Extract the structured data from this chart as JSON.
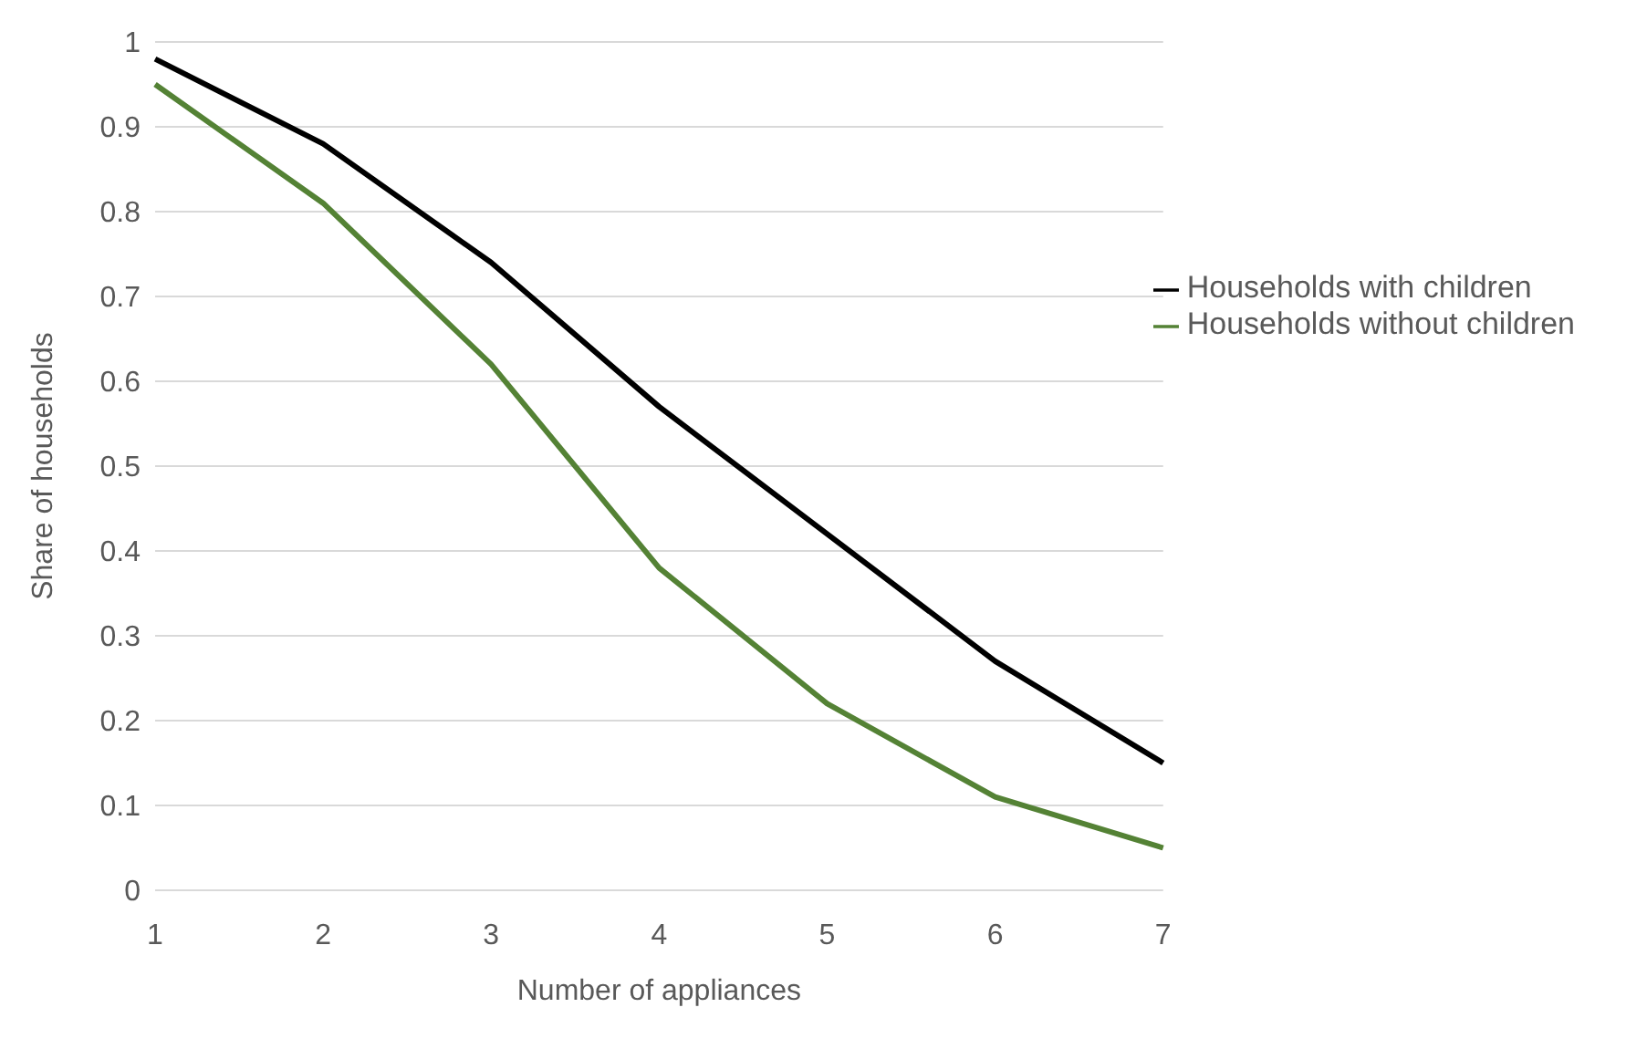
{
  "chart_data": {
    "type": "line",
    "xlabel": "Number  of appliances",
    "ylabel": "Share of households",
    "categories": [
      "1",
      "2",
      "3",
      "4",
      "5",
      "6",
      "7"
    ],
    "series": [
      {
        "name": "Households with children",
        "color": "#000000",
        "values": [
          0.98,
          0.88,
          0.74,
          0.57,
          0.42,
          0.27,
          0.15
        ]
      },
      {
        "name": "Households without children",
        "color": "#548235",
        "values": [
          0.95,
          0.81,
          0.62,
          0.38,
          0.22,
          0.11,
          0.05
        ]
      }
    ],
    "ylim": [
      0,
      1
    ],
    "yticks": [
      0,
      0.1,
      0.2,
      0.3,
      0.4,
      0.5,
      0.6,
      0.7,
      0.8,
      0.9,
      1
    ],
    "grid": "y",
    "legend": "right",
    "marker": "none",
    "line_style": "solid"
  }
}
